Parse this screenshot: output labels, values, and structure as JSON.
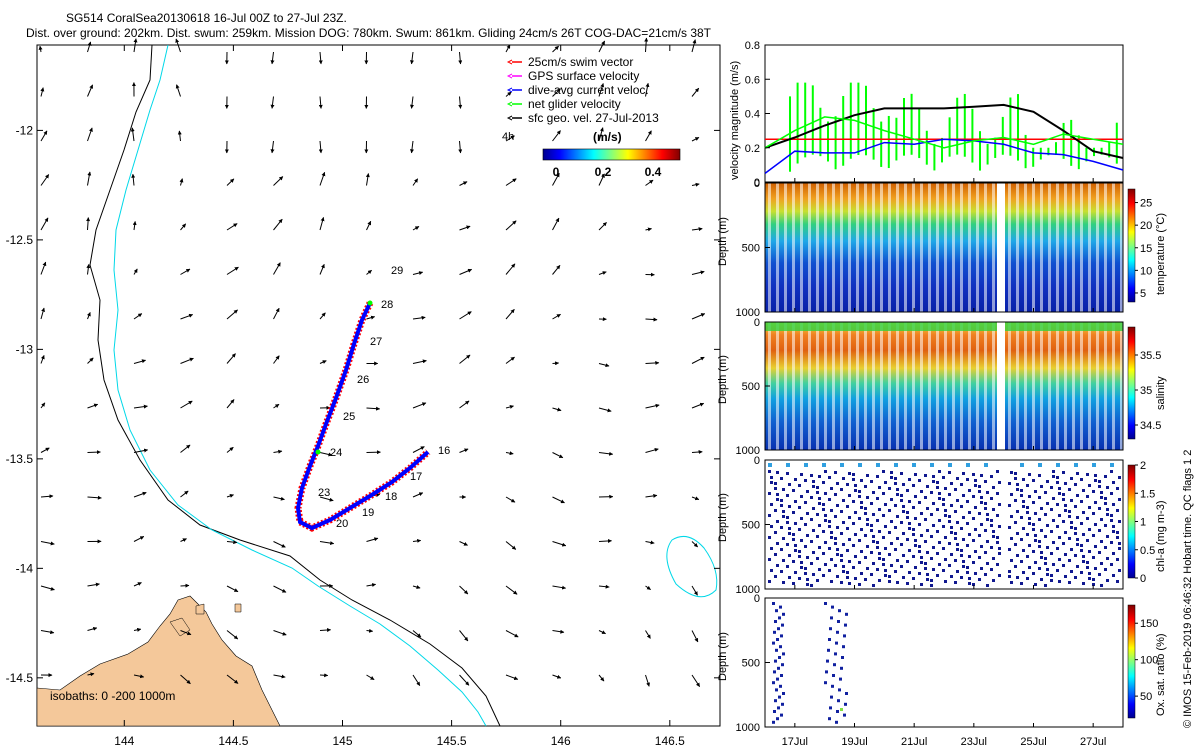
{
  "header": {
    "title_line1": "SG514 CoralSea20130618 16-Jul 00Z to 27-Jul 23Z.",
    "title_line2": "Dist. over ground: 202km. Dist. swum: 259km. Mission DOG: 780km. Swum: 861km. Gliding 24cm/s 26T COG-DAC=21cm/s 38T"
  },
  "colors": {
    "land": "#f4c89a",
    "isobath_200": "#00d8e8",
    "isobath_1000": "#000000",
    "swim": "#ff0000",
    "gps": "#ff00ff",
    "dac": "#0000ff",
    "net": "#00ff00",
    "black": "#000000"
  },
  "map": {
    "x_ticks": [
      "144",
      "144.5",
      "145",
      "145.5",
      "146",
      "146.5"
    ],
    "y_ticks": [
      "-12",
      "-12.5",
      "-13",
      "-13.5",
      "-14",
      "-14.5"
    ],
    "legend": [
      {
        "label": "25cm/s swim vector",
        "color": "#ff0000"
      },
      {
        "label": "GPS surface velocity",
        "color": "#ff00ff"
      },
      {
        "label": "dive-avg current veloc.",
        "color": "#0000ff"
      },
      {
        "label": "net glider velocity",
        "color": "#00ff00"
      },
      {
        "label": "sfc geo. vel. 27-Jul-2013",
        "color": "#000000"
      }
    ],
    "colorbar_title": "(m/s)",
    "colorbar_ticks": [
      "0",
      "0.2",
      "0.4"
    ],
    "scale_label": "4h",
    "isobath_label": "isobaths: 0 -200  1000m",
    "day_labels": [
      "16",
      "17",
      "18",
      "19",
      "20",
      "23",
      "24",
      "25",
      "26",
      "27",
      "28",
      "29"
    ]
  },
  "chart_data": [
    {
      "type": "line",
      "ylabel": "velocity magnitude (m/s)",
      "ylim": [
        0,
        0.8
      ],
      "yticks": [
        "0",
        "0.2",
        "0.4",
        "0.6",
        "0.8"
      ],
      "x_range": [
        "16-Jul",
        "28-Jul"
      ],
      "series": [
        {
          "values": [
            0.25,
            0.25,
            0.25,
            0.25,
            0.25,
            0.25,
            0.25,
            0.25,
            0.25,
            0.25,
            0.25,
            0.25,
            0.25
          ]
        },
        {
          "values": [
            0.2,
            0.26,
            0.33,
            0.39,
            0.43,
            0.43,
            0.43,
            0.44,
            0.45,
            0.41,
            0.3,
            0.18,
            0.14
          ]
        },
        {
          "values": [
            0.05,
            0.18,
            0.17,
            0.17,
            0.23,
            0.22,
            0.25,
            0.24,
            0.22,
            0.17,
            0.16,
            0.12,
            0.07
          ]
        },
        {
          "values": [
            0.2,
            0.3,
            0.38,
            0.36,
            0.3,
            0.25,
            0.2,
            0.24,
            0.26,
            0.22,
            0.28,
            0.25,
            0.22
          ]
        }
      ]
    },
    {
      "type": "heatmap",
      "ylabel": "Depth (m)",
      "yticks": [
        "0",
        "500",
        "1000"
      ],
      "colorbar_label": "temperature (°C)",
      "colorbar_ticks": [
        "5",
        "10",
        "15",
        "20",
        "25"
      ],
      "clim": [
        3,
        28
      ]
    },
    {
      "type": "heatmap",
      "ylabel": "Depth (m)",
      "yticks": [
        "0",
        "500",
        "1000"
      ],
      "colorbar_label": "salinity",
      "colorbar_ticks": [
        "34.5",
        "35",
        "35.5"
      ],
      "clim": [
        34.3,
        35.9
      ]
    },
    {
      "type": "scatter",
      "ylabel": "Depth (m)",
      "yticks": [
        "0",
        "500",
        "1000"
      ],
      "colorbar_label": "chl-a (mg m-3)",
      "colorbar_ticks": [
        "0",
        "0.5",
        "1",
        "1.5",
        "2"
      ],
      "clim": [
        0,
        2
      ]
    },
    {
      "type": "scatter",
      "ylabel": "Depth (m)",
      "yticks": [
        "0",
        "500",
        "1000"
      ],
      "colorbar_label": "Ox. sat. ratio (%)",
      "colorbar_ticks": [
        "50",
        "100",
        "150"
      ],
      "clim": [
        20,
        175
      ]
    }
  ],
  "time_axis": {
    "ticks": [
      "17Jul",
      "19Jul",
      "21Jul",
      "23Jul",
      "25Jul",
      "27Jul"
    ]
  },
  "footer": {
    "stamp": "© IMOS 15-Feb-2019 06:46:32 Hobart time. QC flags 1  2"
  }
}
